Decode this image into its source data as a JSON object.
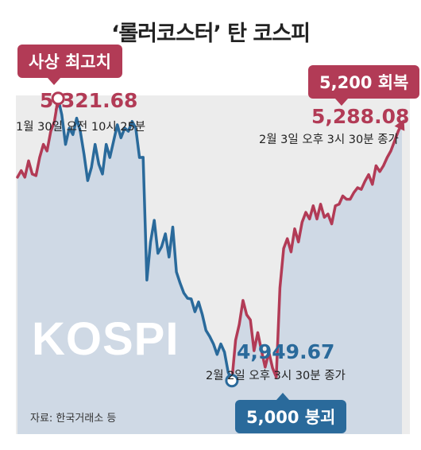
{
  "title": "‘롤러코스터’ 탄 코스피",
  "watermark": "KOSPI",
  "source": "자료: 한국거래소 등",
  "colors": {
    "up": "#b23b56",
    "down": "#2a6a9b",
    "area": "#cfd9e5",
    "panel": "#ececec"
  },
  "annotations": {
    "high": {
      "tag": "사상 최고치",
      "value": "5,321.68",
      "note": "1월 30일 오전 10시 25분"
    },
    "low": {
      "tag": "5,000 붕괴",
      "value": "4,949.67",
      "note": "2월 2일 오후 3시 30분 종가"
    },
    "recover": {
      "tag": "5,200 회복",
      "value": "5,288.08",
      "note": "2월 3일 오후 3시 30분 종가"
    }
  },
  "chart_data": {
    "type": "line",
    "series": [
      {
        "values": [
          5216.5,
          5225.3,
          5216.5,
          5238.4,
          5220.8,
          5218.6,
          5242.8,
          5260.3,
          5251.5,
          5277.8,
          5291,
          5321.7,
          5299.8,
          5260.3,
          5282.2,
          5273.4,
          5295.4,
          5277.8,
          5247.1,
          5212.1,
          5229.6,
          5260.3,
          5233.9,
          5220.8,
          5260.3,
          5242.8,
          5264.7,
          5286.6,
          5269.1,
          5282.2,
          5277.8,
          5291,
          5282.2,
          5242.8,
          5243,
          5079.3,
          5130,
          5159,
          5115,
          5124,
          5141,
          5110,
          5150,
          5090,
          5075,
          5062,
          5055,
          5054,
          5037,
          5050,
          5033,
          5012,
          5004,
          4994,
          4980,
          4994,
          4983,
          4956,
          4945,
          4999,
          5020,
          5052,
          5033,
          5026,
          4985,
          5009,
          4985,
          4963,
          4983,
          4961.9,
          4949.7,
          5068.8,
          5121.4,
          5134.5,
          5116.9,
          5147.6,
          5130.1,
          5156.4,
          5169.6,
          5160.8,
          5178.4,
          5160.8,
          5180.5,
          5163,
          5167.4,
          5154.2,
          5178.4,
          5180.5,
          5191.5,
          5187.1,
          5187.1,
          5196,
          5202.5,
          5200.3,
          5211.3,
          5220,
          5207,
          5231.8,
          5224,
          5231.8,
          5242.8,
          5251.5,
          5264.7,
          5277.8,
          5288.1
        ]
      }
    ],
    "ylim": [
      4880,
      5400
    ],
    "points": [
      {
        "value": 5321.68,
        "label": "사상 최고치"
      },
      {
        "value": 4949.67,
        "label": "5,000 붕괴"
      },
      {
        "value": 5288.08,
        "label": "5,200 회복"
      }
    ]
  }
}
